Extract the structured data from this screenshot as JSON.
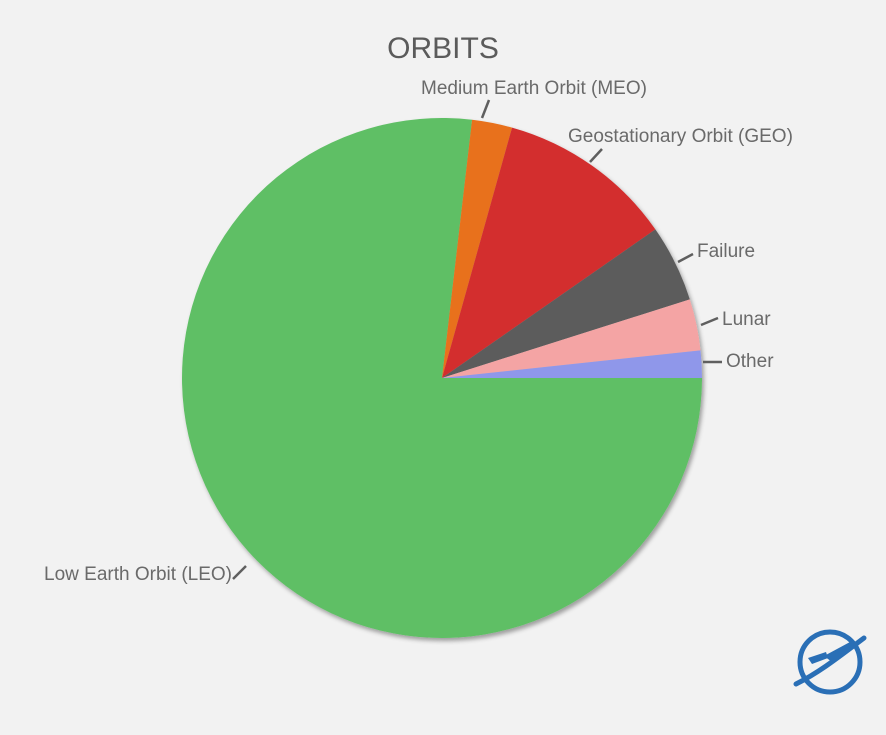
{
  "chart_data": {
    "type": "pie",
    "title": "ORBITS",
    "slices": [
      {
        "label": "Low Earth Orbit (LEO)",
        "value": 77.0,
        "color": "#5fbf65"
      },
      {
        "label": "Medium Earth Orbit (MEO)",
        "value": 2.5,
        "color": "#e8711c"
      },
      {
        "label": "Geostationary Orbit (GEO)",
        "value": 11.0,
        "color": "#d32f2f"
      },
      {
        "label": "Failure",
        "value": 4.8,
        "color": "#5b5b5b"
      },
      {
        "label": "Lunar",
        "value": 3.2,
        "color": "#f4a4a4"
      },
      {
        "label": "Other",
        "value": 1.7,
        "color": "#8f97ea"
      }
    ],
    "start_angle_deg": 0,
    "direction": "clockwise-from-3-oclock",
    "legend": "none (labels with leader lines)"
  },
  "logo": {
    "name": "orbit-logo-icon",
    "color": "#2a6fb6"
  }
}
